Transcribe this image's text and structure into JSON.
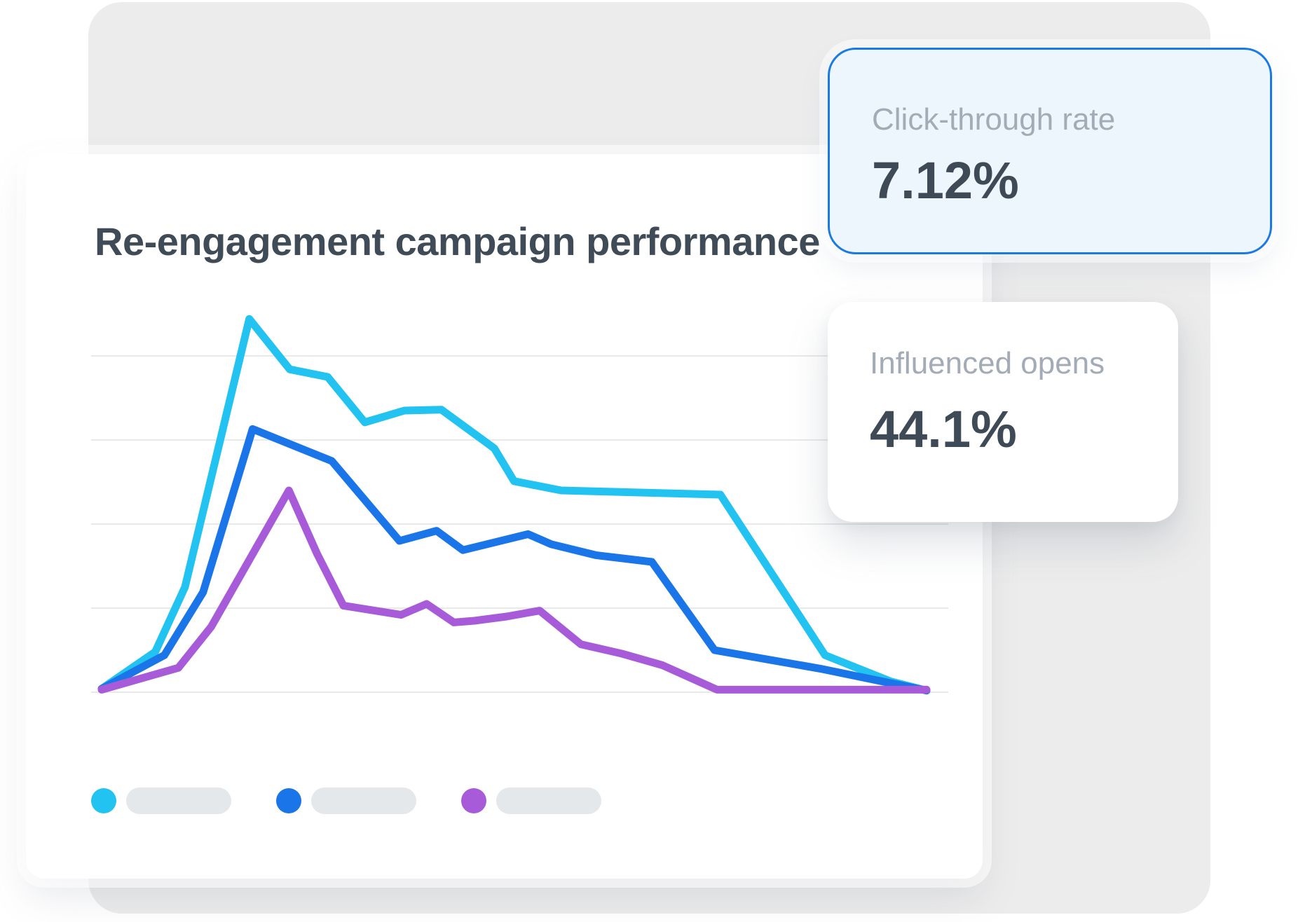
{
  "page": {
    "background_color": "#ffffff",
    "panel_color": "#ececec"
  },
  "chart_card": {
    "title": "Re-engagement campaign performance",
    "title_color": "#404b58"
  },
  "stat_cards": [
    {
      "id": "click-through-rate",
      "label": "Click-through rate",
      "value": "7.12%",
      "style": "highlighted",
      "border_color": "#187ae2",
      "background": "#edf5fd",
      "label_color": "#a3abb6",
      "value_color": "#3e4a55"
    },
    {
      "id": "influenced-opens",
      "label": "Influenced opens",
      "value": "44.1%",
      "style": "plain",
      "background": "#ffffff",
      "label_color": "#a3abb6",
      "value_color": "#3e4a55"
    }
  ],
  "legend": {
    "position": "bottom-left",
    "items": [
      {
        "series": "series-1",
        "color": "#22c3f0",
        "label_placeholder": true,
        "pill_color": "#e5e8eb"
      },
      {
        "series": "series-2",
        "color": "#1a75e8",
        "label_placeholder": true,
        "pill_color": "#e5e8eb"
      },
      {
        "series": "series-3",
        "color": "#a85bd9",
        "label_placeholder": true,
        "pill_color": "#e5e8eb"
      }
    ]
  },
  "chart_data": {
    "type": "line",
    "title": "Re-engagement campaign performance",
    "xlabel": "",
    "ylabel": "",
    "x_range": [
      0,
      100
    ],
    "ylim": [
      0,
      48
    ],
    "gridline_values": [
      0,
      10,
      20,
      30,
      40
    ],
    "grid": "horizontal-only",
    "axis_tick_labels_visible": false,
    "legend_position": "bottom",
    "gridline_color": "#e9e9e9",
    "stroke_width": 11,
    "series": [
      {
        "name": "series-1",
        "color": "#22c3f0",
        "points": [
          [
            0,
            0.4
          ],
          [
            6.5,
            4.8
          ],
          [
            10.1,
            12.5
          ],
          [
            17.9,
            44.4
          ],
          [
            22.8,
            38.4
          ],
          [
            27.4,
            37.5
          ],
          [
            31.9,
            32.1
          ],
          [
            36.7,
            33.5
          ],
          [
            41.2,
            33.6
          ],
          [
            47.6,
            29.0
          ],
          [
            50.0,
            25.1
          ],
          [
            55.7,
            24.0
          ],
          [
            75.0,
            23.5
          ],
          [
            87.7,
            4.4
          ],
          [
            95.6,
            1.3
          ],
          [
            100,
            0.2
          ]
        ]
      },
      {
        "name": "series-2",
        "color": "#1a75e8",
        "points": [
          [
            0,
            0.4
          ],
          [
            7.6,
            4.4
          ],
          [
            12.3,
            11.9
          ],
          [
            18.3,
            31.3
          ],
          [
            27.9,
            27.5
          ],
          [
            36.1,
            18.0
          ],
          [
            40.6,
            19.2
          ],
          [
            43.8,
            16.9
          ],
          [
            51.7,
            18.8
          ],
          [
            54.5,
            17.6
          ],
          [
            59.9,
            16.3
          ],
          [
            66.7,
            15.5
          ],
          [
            74.3,
            5.0
          ],
          [
            87.1,
            2.8
          ],
          [
            100,
            0.2
          ]
        ]
      },
      {
        "name": "series-3",
        "color": "#a85bd9",
        "points": [
          [
            0,
            0.3
          ],
          [
            9.3,
            2.9
          ],
          [
            13.3,
            7.8
          ],
          [
            22.7,
            24.0
          ],
          [
            26.1,
            16.5
          ],
          [
            29.3,
            10.3
          ],
          [
            36.3,
            9.2
          ],
          [
            39.4,
            10.5
          ],
          [
            42.7,
            8.3
          ],
          [
            45.2,
            8.5
          ],
          [
            49.1,
            9.0
          ],
          [
            53.1,
            9.7
          ],
          [
            58.1,
            5.7
          ],
          [
            63.0,
            4.6
          ],
          [
            68.0,
            3.2
          ],
          [
            74.6,
            0.3
          ],
          [
            100,
            0.3
          ]
        ]
      }
    ]
  }
}
